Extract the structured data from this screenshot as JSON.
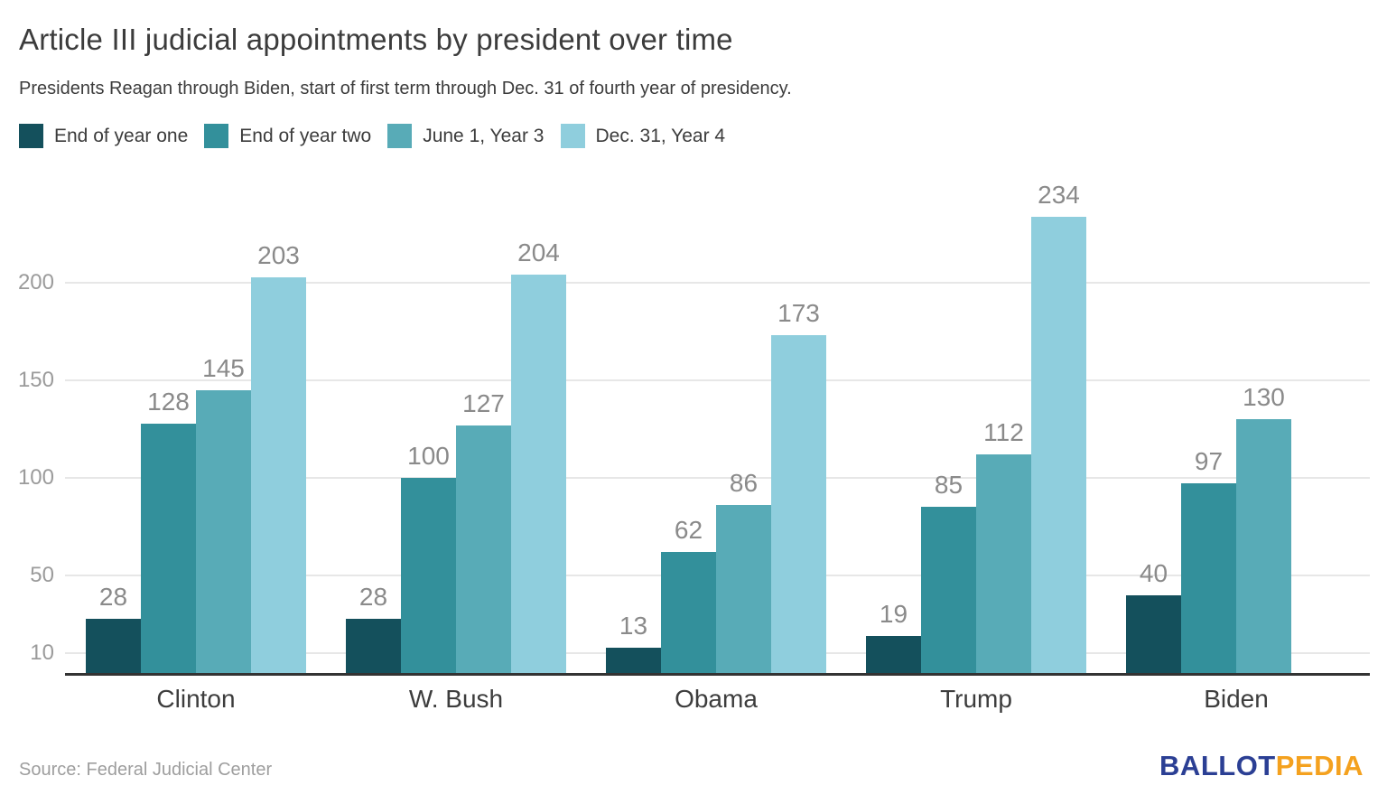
{
  "header": {
    "title": "Article III judicial appointments by president over time",
    "subtitle": "Presidents Reagan through Biden, start of first term through Dec. 31 of fourth year of presidency."
  },
  "chart_data": {
    "type": "bar",
    "title": "Article III judicial appointments by president over time",
    "categories": [
      "Clinton",
      "W. Bush",
      "Obama",
      "Trump",
      "Biden"
    ],
    "series": [
      {
        "name": "End of year one",
        "color": "#14505c",
        "values": [
          28,
          28,
          13,
          19,
          40
        ]
      },
      {
        "name": "End of year two",
        "color": "#33909b",
        "values": [
          128,
          100,
          62,
          85,
          97
        ]
      },
      {
        "name": "June 1, Year 3",
        "color": "#58abb7",
        "values": [
          145,
          127,
          86,
          112,
          130
        ]
      },
      {
        "name": "Dec. 31, Year 4",
        "color": "#8fcedd",
        "values": [
          203,
          204,
          173,
          234,
          null
        ]
      }
    ],
    "yticks": [
      10,
      50,
      100,
      150,
      200
    ],
    "ylim": [
      0,
      240
    ],
    "grid": true,
    "legend_position": "top",
    "value_labels_shown": true
  },
  "footer": {
    "source": "Source: Federal Judicial Center",
    "logo": {
      "part1": "BALLOT",
      "part2": "PEDIA",
      "color1": "#2b3f94",
      "color2": "#f4a11e"
    }
  }
}
